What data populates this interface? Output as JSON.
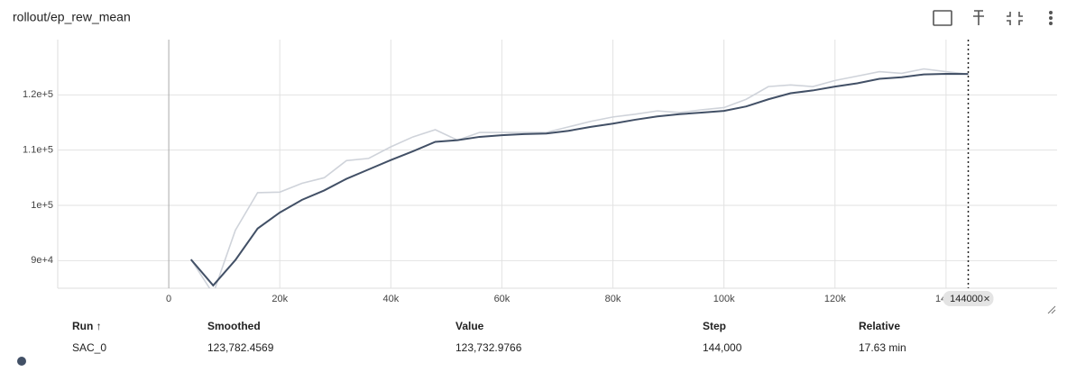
{
  "header": {
    "title": "rollout/ep_rew_mean"
  },
  "chart_data": {
    "type": "line",
    "x": [
      4000,
      8000,
      12000,
      16000,
      20000,
      24000,
      28000,
      32000,
      36000,
      40000,
      44000,
      48000,
      52000,
      56000,
      60000,
      64000,
      68000,
      72000,
      76000,
      80000,
      84000,
      88000,
      92000,
      96000,
      100000,
      104000,
      108000,
      112000,
      116000,
      120000,
      124000,
      128000,
      132000,
      136000,
      140000,
      144000
    ],
    "series": [
      {
        "color": "#cfd3da",
        "values": [
          90200,
          84000,
          95500,
          102300,
          102400,
          104000,
          105000,
          108100,
          108500,
          110600,
          112400,
          113700,
          111800,
          113200,
          113200,
          113200,
          113200,
          114200,
          115200,
          116000,
          116500,
          117100,
          116800,
          117300,
          117700,
          119200,
          121500,
          121800,
          121500,
          122600,
          123400,
          124200,
          123900,
          124700,
          124200,
          123733
        ]
      },
      {
        "color": "#425066",
        "values": [
          90200,
          85500,
          90100,
          95800,
          98700,
          101000,
          102700,
          104800,
          106500,
          108200,
          109800,
          111500,
          111800,
          112400,
          112700,
          112900,
          113000,
          113500,
          114200,
          114800,
          115500,
          116100,
          116500,
          116800,
          117100,
          117900,
          119200,
          120300,
          120800,
          121500,
          122100,
          122900,
          123200,
          123700,
          123800,
          123782
        ]
      }
    ],
    "xlim": [
      -20000,
      160000
    ],
    "ylim": [
      85000,
      130000
    ],
    "xticks": [
      0,
      {
        "value": 20000,
        "label": "20k"
      },
      {
        "value": 40000,
        "label": "40k"
      },
      {
        "value": 60000,
        "label": "60k"
      },
      {
        "value": 80000,
        "label": "80k"
      },
      {
        "value": 100000,
        "label": "100k"
      },
      {
        "value": 120000,
        "label": "120k"
      },
      {
        "value": 140000,
        "label": "140k"
      }
    ],
    "yticks": [
      {
        "value": 90000,
        "label": "9e+4"
      },
      {
        "value": 100000,
        "label": "1e+5"
      },
      {
        "value": 110000,
        "label": "1.1e+5"
      },
      {
        "value": 120000,
        "label": "1.2e+5"
      }
    ],
    "grid": true,
    "cursor_x": 144000
  },
  "table": {
    "columns": [
      "Run ↑",
      "Smoothed",
      "Value",
      "Step",
      "Relative"
    ],
    "rows": [
      [
        "SAC_0",
        "123,782.4569",
        "123,732.9766",
        "144,000",
        "17.63 min"
      ]
    ]
  }
}
